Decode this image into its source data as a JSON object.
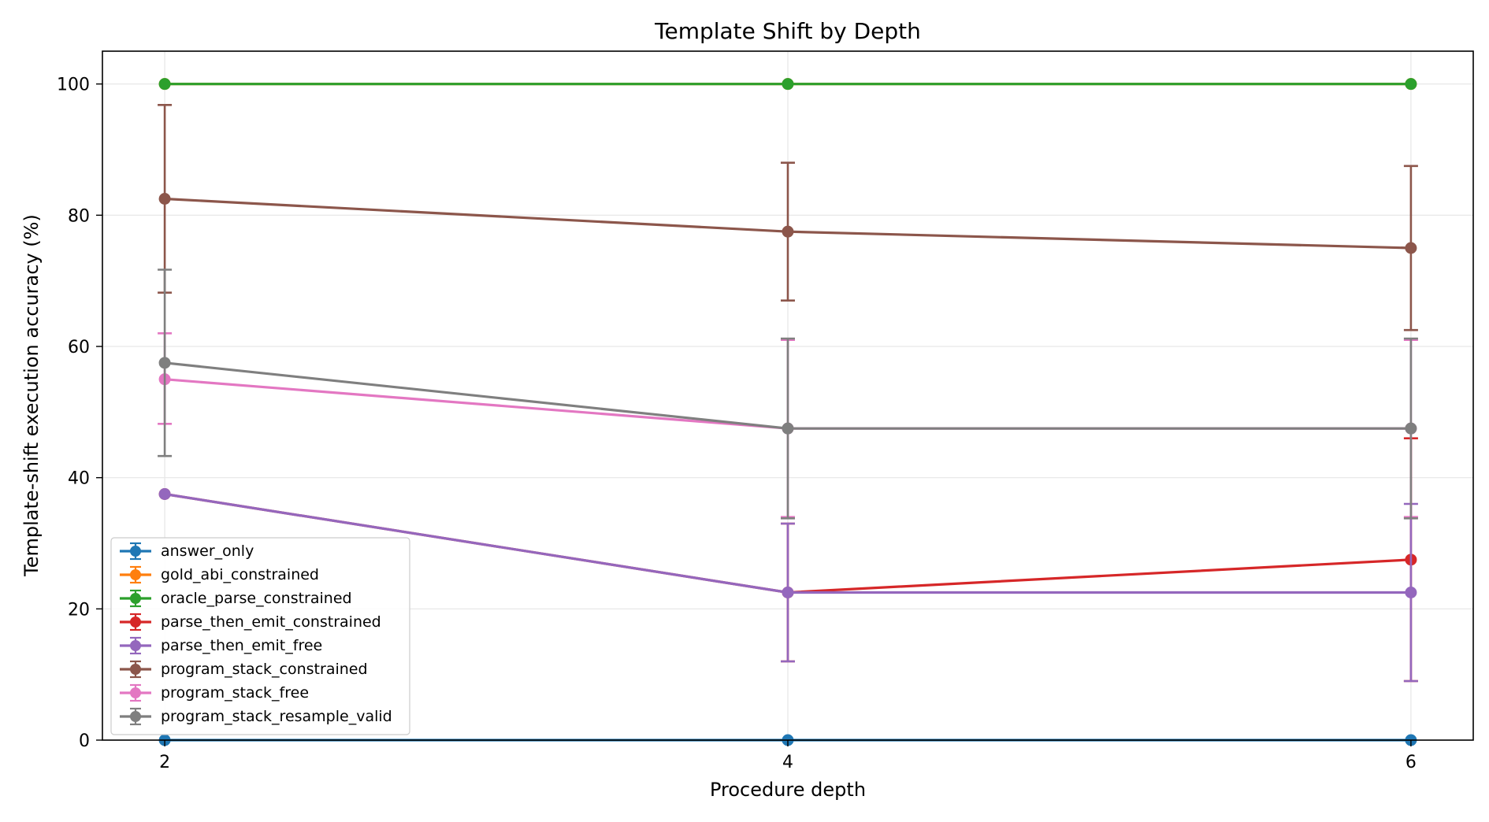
{
  "chart_data": {
    "type": "line",
    "title": "Template Shift by Depth",
    "xlabel": "Procedure depth",
    "ylabel": "Template-shift execution accuracy (%)",
    "x": [
      2,
      4,
      6
    ],
    "xlim": [
      1.8,
      6.2
    ],
    "ylim": [
      0,
      105
    ],
    "xticks": [
      2,
      4,
      6
    ],
    "yticks": [
      0,
      20,
      40,
      60,
      80,
      100
    ],
    "grid": true,
    "legend_position": "lower-left",
    "series": [
      {
        "name": "answer_only",
        "color": "#1f77b4",
        "values": [
          0,
          0,
          0
        ],
        "err": [
          [
            0,
            0
          ],
          [
            0,
            0
          ],
          [
            0,
            0
          ]
        ]
      },
      {
        "name": "gold_abi_constrained",
        "color": "#ff7f0e",
        "values": [
          100,
          100,
          100
        ],
        "err": [
          [
            0,
            0
          ],
          [
            0,
            0
          ],
          [
            0,
            0
          ]
        ]
      },
      {
        "name": "oracle_parse_constrained",
        "color": "#2ca02c",
        "values": [
          100,
          100,
          100
        ],
        "err": [
          [
            0,
            0
          ],
          [
            0,
            0
          ],
          [
            0,
            0
          ]
        ]
      },
      {
        "name": "parse_then_emit_constrained",
        "color": "#d62728",
        "values": [
          37.5,
          22.5,
          27.5
        ],
        "err": [
          [
            37.5,
            37.5
          ],
          [
            12,
            33
          ],
          [
            9,
            46
          ]
        ]
      },
      {
        "name": "parse_then_emit_free",
        "color": "#9467bd",
        "values": [
          37.5,
          22.5,
          22.5
        ],
        "err": [
          [
            37.5,
            37.5
          ],
          [
            12,
            33
          ],
          [
            9,
            36
          ]
        ]
      },
      {
        "name": "program_stack_constrained",
        "color": "#8c564b",
        "values": [
          82.5,
          77.5,
          75
        ],
        "err": [
          [
            68.2,
            96.8
          ],
          [
            67,
            88
          ],
          [
            62.5,
            87.5
          ]
        ]
      },
      {
        "name": "program_stack_free",
        "color": "#e377c2",
        "values": [
          55,
          47.5,
          47.5
        ],
        "err": [
          [
            48.2,
            62
          ],
          [
            34,
            61
          ],
          [
            34,
            61
          ]
        ]
      },
      {
        "name": "program_stack_resample_valid",
        "color": "#7f7f7f",
        "values": [
          57.5,
          47.5,
          47.5
        ],
        "err": [
          [
            43.3,
            71.7
          ],
          [
            33.8,
            61.2
          ],
          [
            33.8,
            61.2
          ]
        ]
      }
    ]
  }
}
